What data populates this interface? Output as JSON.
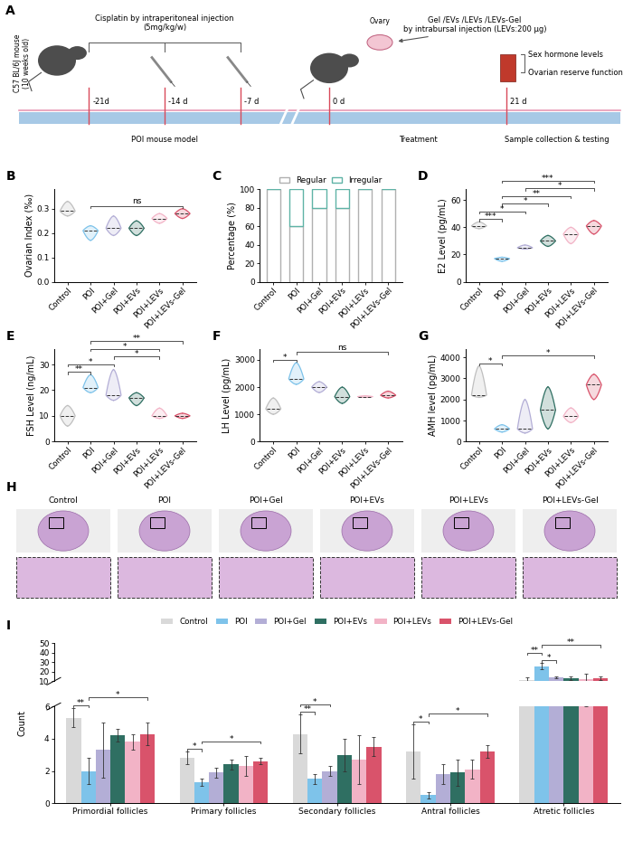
{
  "chart_data": [
    {
      "panel": "B",
      "type": "violin",
      "y_label": "Ovarian Index (‰)",
      "categories": [
        "Control",
        "POI",
        "POI+Gel",
        "POI+EVs",
        "POI+LEVs",
        "POI+LEVs-Gel"
      ],
      "colors": [
        "#bfbfbf",
        "#7ec3ea",
        "#b3aed6",
        "#2f6f62",
        "#f2b3c6",
        "#d9536b"
      ],
      "values": [
        0.29,
        0.21,
        0.22,
        0.22,
        0.26,
        0.28
      ],
      "ranges": [
        [
          0.27,
          0.33
        ],
        [
          0.17,
          0.23
        ],
        [
          0.19,
          0.27
        ],
        [
          0.19,
          0.25
        ],
        [
          0.24,
          0.28
        ],
        [
          0.26,
          0.3
        ]
      ],
      "ylim": [
        0,
        0.38
      ],
      "yticks": [
        {
          "value": 0,
          "label": "0.0"
        },
        0.1,
        0.2,
        0.3
      ],
      "annotations": [
        {
          "pair": [
            "POI",
            "POI+LEVs-Gel"
          ],
          "label": "ns"
        }
      ]
    },
    {
      "panel": "C",
      "type": "bar",
      "stacked": true,
      "y_label": "Percentage (%)",
      "categories": [
        "Control",
        "POI",
        "POI+Gel",
        "POI+EVs",
        "POI+LEVs",
        "POI+LEVs-Gel"
      ],
      "series": [
        {
          "name": "Regular",
          "color": "#b0b0b0",
          "values": [
            100,
            60,
            80,
            80,
            100,
            100
          ]
        },
        {
          "name": "Irregular",
          "color": "#5fb3a6",
          "values": [
            0,
            40,
            20,
            20,
            0,
            0
          ]
        }
      ],
      "ylim": [
        0,
        100
      ],
      "yticks": [
        0,
        20,
        40,
        60,
        80,
        100
      ],
      "legend": "top"
    },
    {
      "panel": "D",
      "type": "violin",
      "y_label": "E2 Level (pg/mL)",
      "categories": [
        "Control",
        "POI",
        "POI+Gel",
        "POI+EVs",
        "POI+LEVs",
        "POI+LEVs-Gel"
      ],
      "colors": [
        "#bfbfbf",
        "#7ec3ea",
        "#b3aed6",
        "#2f6f62",
        "#f2b3c6",
        "#d9536b"
      ],
      "values": [
        41,
        17,
        25,
        30,
        35,
        41
      ],
      "ranges": [
        [
          39,
          44
        ],
        [
          15,
          18
        ],
        [
          24,
          27
        ],
        [
          26,
          34
        ],
        [
          28,
          40
        ],
        [
          35,
          45
        ]
      ],
      "ylim": [
        0,
        68
      ],
      "yticks": [
        0,
        20,
        40,
        60
      ],
      "annotations": [
        {
          "pair": [
            "Control",
            "POI"
          ],
          "label": "***"
        },
        {
          "pair": [
            "Control",
            "POI+Gel"
          ],
          "label": "*"
        },
        {
          "pair": [
            "POI",
            "POI+EVs"
          ],
          "label": "*"
        },
        {
          "pair": [
            "POI",
            "POI+LEVs"
          ],
          "label": "**"
        },
        {
          "pair": [
            "POI+Gel",
            "POI+LEVs-Gel"
          ],
          "label": "*"
        },
        {
          "pair": [
            "POI",
            "POI+LEVs-Gel"
          ],
          "label": "***"
        }
      ]
    },
    {
      "panel": "E",
      "type": "violin",
      "y_label": "FSH Level (ng/mL)",
      "categories": [
        "Control",
        "POI",
        "POI+Gel",
        "POI+EVs",
        "POI+LEVs",
        "POI+LEVs-Gel"
      ],
      "colors": [
        "#bfbfbf",
        "#7ec3ea",
        "#b3aed6",
        "#2f6f62",
        "#f2b3c6",
        "#d9536b"
      ],
      "values": [
        10,
        21,
        18,
        17,
        10,
        10
      ],
      "ranges": [
        [
          6,
          14
        ],
        [
          19,
          26
        ],
        [
          16,
          28
        ],
        [
          14,
          19
        ],
        [
          9,
          13
        ],
        [
          9,
          11
        ]
      ],
      "ylim": [
        0,
        36
      ],
      "yticks": [
        0,
        10,
        20,
        30
      ],
      "annotations": [
        {
          "pair": [
            "Control",
            "POI"
          ],
          "label": "**"
        },
        {
          "pair": [
            "Control",
            "POI+Gel"
          ],
          "label": "*"
        },
        {
          "pair": [
            "POI+Gel",
            "POI+LEVs"
          ],
          "label": "*"
        },
        {
          "pair": [
            "POI",
            "POI+LEVs"
          ],
          "label": "*"
        },
        {
          "pair": [
            "POI",
            "POI+LEVs-Gel"
          ],
          "label": "**"
        }
      ]
    },
    {
      "panel": "F",
      "type": "violin",
      "y_label": "LH Level (pg/mL)",
      "categories": [
        "Control",
        "POI",
        "POI+Gel",
        "POI+EVs",
        "POI+LEVs",
        "POI+LEVs-Gel"
      ],
      "colors": [
        "#bfbfbf",
        "#7ec3ea",
        "#b3aed6",
        "#2f6f62",
        "#f2b3c6",
        "#d9536b"
      ],
      "values": [
        1200,
        2300,
        2000,
        1650,
        1650,
        1700
      ],
      "ranges": [
        [
          1000,
          1600
        ],
        [
          2100,
          2900
        ],
        [
          1800,
          2200
        ],
        [
          1400,
          2000
        ],
        [
          1620,
          1680
        ],
        [
          1600,
          1850
        ]
      ],
      "ylim": [
        0,
        3400
      ],
      "yticks": [
        0,
        1000,
        2000,
        3000
      ],
      "annotations": [
        {
          "pair": [
            "Control",
            "POI"
          ],
          "label": "*"
        },
        {
          "pair": [
            "POI",
            "POI+LEVs-Gel"
          ],
          "label": "ns"
        }
      ]
    },
    {
      "panel": "G",
      "type": "violin",
      "y_label": "AMH level (pg/mL)",
      "categories": [
        "Control",
        "POI",
        "POI+Gel",
        "POI+EVs",
        "POI+LEVs",
        "POI+LEVs-Gel"
      ],
      "colors": [
        "#bfbfbf",
        "#7ec3ea",
        "#b3aed6",
        "#2f6f62",
        "#f2b3c6",
        "#d9536b"
      ],
      "values": [
        2200,
        600,
        600,
        1500,
        1200,
        2700
      ],
      "ranges": [
        [
          2100,
          3600
        ],
        [
          450,
          800
        ],
        [
          400,
          2000
        ],
        [
          600,
          2600
        ],
        [
          900,
          1600
        ],
        [
          2000,
          3200
        ]
      ],
      "ylim": [
        0,
        4400
      ],
      "yticks": [
        0,
        1000,
        2000,
        3000,
        4000
      ],
      "annotations": [
        {
          "pair": [
            "Control",
            "POI"
          ],
          "label": "*"
        },
        {
          "pair": [
            "POI",
            "POI+LEVs-Gel"
          ],
          "label": "*"
        }
      ]
    },
    {
      "panel": "I",
      "type": "bar",
      "y_label": "Count",
      "categories": [
        "Primordial follicles",
        "Primary follicles",
        "Secondary follicles",
        "Antral follicles",
        "Atretic follicles"
      ],
      "series": [
        {
          "name": "Control",
          "color": "#d9d9d9",
          "values": [
            5.3,
            2.8,
            4.3,
            3.2,
            11
          ],
          "errors": [
            0.6,
            0.4,
            1.2,
            1.7,
            3
          ]
        },
        {
          "name": "POI",
          "color": "#7ec3ea",
          "values": [
            2.0,
            1.3,
            1.5,
            0.5,
            26
          ],
          "errors": [
            0.8,
            0.2,
            0.3,
            0.2,
            3
          ]
        },
        {
          "name": "POI+Gel",
          "color": "#b3aed6",
          "values": [
            3.3,
            1.9,
            2.0,
            1.8,
            14
          ],
          "errors": [
            1.7,
            0.3,
            0.3,
            0.6,
            1
          ]
        },
        {
          "name": "POI+EVs",
          "color": "#2f6f62",
          "values": [
            4.2,
            2.4,
            3.0,
            1.9,
            13
          ],
          "errors": [
            0.4,
            0.3,
            1.0,
            0.8,
            2
          ]
        },
        {
          "name": "POI+LEVs",
          "color": "#f2b3c6",
          "values": [
            3.8,
            2.3,
            2.7,
            2.1,
            12
          ],
          "errors": [
            0.5,
            0.6,
            1.5,
            0.6,
            6
          ]
        },
        {
          "name": "POI+LEVs-Gel",
          "color": "#d9536b",
          "values": [
            4.3,
            2.6,
            3.5,
            3.2,
            13
          ],
          "errors": [
            0.7,
            0.2,
            0.6,
            0.4,
            2
          ]
        }
      ],
      "ylim": [
        0,
        50
      ],
      "yticks": [
        0,
        2,
        4,
        6,
        10,
        20,
        30,
        40,
        50
      ],
      "axis_break": [
        6,
        10
      ],
      "legend": "top",
      "annotations": [
        {
          "category": "Primordial follicles",
          "pair": [
            "Control",
            "POI"
          ],
          "label": "**"
        },
        {
          "category": "Primordial follicles",
          "pair": [
            "POI",
            "POI+LEVs-Gel"
          ],
          "label": "*"
        },
        {
          "category": "Primary follicles",
          "pair": [
            "Control",
            "POI"
          ],
          "label": "*"
        },
        {
          "category": "Primary follicles",
          "pair": [
            "POI",
            "POI+LEVs-Gel"
          ],
          "label": "*"
        },
        {
          "category": "Secondary follicles",
          "pair": [
            "Control",
            "POI"
          ],
          "label": "**"
        },
        {
          "category": "Secondary follicles",
          "pair": [
            "Control",
            "POI+Gel"
          ],
          "label": "*"
        },
        {
          "category": "Antral follicles",
          "pair": [
            "Control",
            "POI"
          ],
          "label": "*"
        },
        {
          "category": "Antral follicles",
          "pair": [
            "POI",
            "POI+LEVs-Gel"
          ],
          "label": "*"
        },
        {
          "category": "Atretic follicles",
          "pair": [
            "Control",
            "POI"
          ],
          "label": "**"
        },
        {
          "category": "Atretic follicles",
          "pair": [
            "POI",
            "POI+Gel"
          ],
          "label": "*"
        },
        {
          "category": "Atretic follicles",
          "pair": [
            "POI",
            "POI+LEVs-Gel"
          ],
          "label": "**"
        }
      ]
    }
  ],
  "diagram": {
    "panel": "A",
    "mouse_label": [
      "C57 BL/6J mouse",
      "(10 weeks old)"
    ],
    "injection_label": [
      "Cisplatin by intraperitoneal injection",
      "(5mg/kg/w)"
    ],
    "days": [
      "-21d",
      "-14 d",
      "-7 d",
      "0 d",
      "21 d"
    ],
    "ovary_label": "Ovary",
    "treatment_label": [
      "Gel /EVs /LEVs /LEVs-Gel",
      "by intrabursal injection (LEVs:200 μg)"
    ],
    "readouts": [
      "Sex hormone levels",
      "Ovarian reserve function"
    ],
    "phases": [
      "POI mouse model",
      "Treatment",
      "Sample collection & testing"
    ]
  },
  "images": {
    "panel": "H",
    "titles": [
      "Control",
      "POI",
      "POI+Gel",
      "POI+EVs",
      "POI+LEVs",
      "POI+LEVs-Gel"
    ]
  }
}
